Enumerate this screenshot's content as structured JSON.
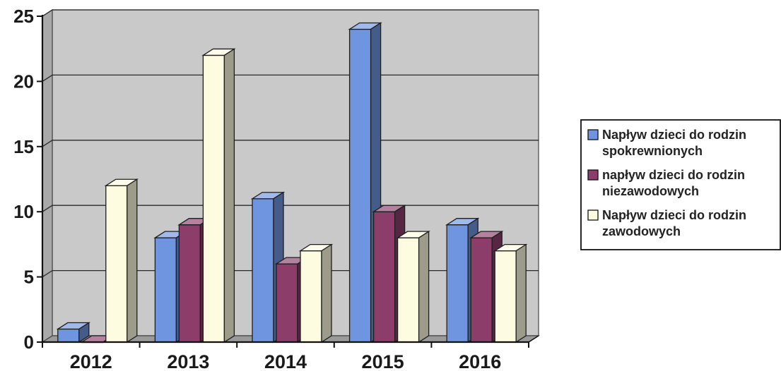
{
  "chart_data": {
    "type": "bar",
    "style": "3d-clustered-column",
    "categories": [
      "2012",
      "2013",
      "2014",
      "2015",
      "2016"
    ],
    "ylim": [
      0,
      25
    ],
    "yticks": [
      0,
      5,
      10,
      15,
      20,
      25
    ],
    "grid": true,
    "legend_position": "right",
    "series": [
      {
        "name": "Napływ dzieci do rodzin spokrewnionych",
        "legend_lines": [
          "Napływ dzieci do rodzin",
          "spokrewnionych"
        ],
        "color": "#6f94e0",
        "values": [
          1,
          8,
          11,
          24,
          9
        ]
      },
      {
        "name": "napływ dzieci do rodzin niezawodowych",
        "legend_lines": [
          "napływ dzieci do rodzin",
          "niezawodowych"
        ],
        "color": "#8c3d6a",
        "values": [
          0,
          9,
          6,
          10,
          8
        ]
      },
      {
        "name": "Napływ dzieci do rodzin zawodowych",
        "legend_lines": [
          "Napływ dzieci do rodzin",
          "zawodowych"
        ],
        "color": "#fdfbe0",
        "values": [
          12,
          22,
          7,
          8,
          7
        ]
      }
    ]
  }
}
